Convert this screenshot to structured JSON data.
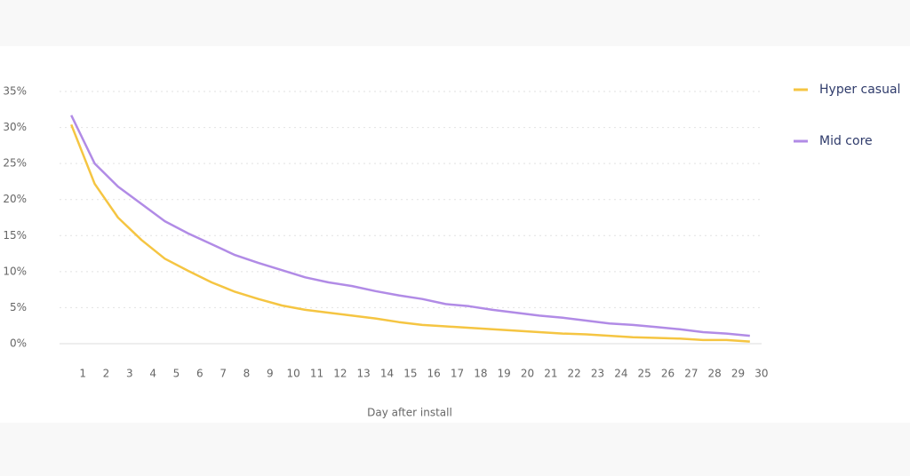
{
  "chart_data": {
    "type": "line",
    "x_label": "Day after install",
    "x": [
      1,
      2,
      3,
      4,
      5,
      6,
      7,
      8,
      9,
      10,
      11,
      12,
      13,
      14,
      15,
      16,
      17,
      18,
      19,
      20,
      21,
      22,
      23,
      24,
      25,
      26,
      27,
      28,
      29,
      30
    ],
    "series": [
      {
        "name": "Hyper casual",
        "color": "#f5c542",
        "values": [
          30.4,
          22.2,
          17.5,
          14.4,
          11.8,
          10.1,
          8.5,
          7.2,
          6.2,
          5.3,
          4.7,
          4.3,
          3.9,
          3.5,
          3.0,
          2.6,
          2.4,
          2.2,
          2.0,
          1.8,
          1.6,
          1.4,
          1.3,
          1.1,
          0.9,
          0.8,
          0.7,
          0.5,
          0.5,
          0.3
        ]
      },
      {
        "name": "Mid core",
        "color": "#b18be6",
        "values": [
          31.7,
          25.0,
          21.8,
          19.4,
          17.0,
          15.3,
          13.8,
          12.3,
          11.2,
          10.2,
          9.2,
          8.5,
          8.0,
          7.3,
          6.7,
          6.2,
          5.5,
          5.2,
          4.7,
          4.3,
          3.9,
          3.6,
          3.2,
          2.8,
          2.6,
          2.3,
          2.0,
          1.6,
          1.4,
          1.1
        ]
      }
    ],
    "xlim": [
      0.5,
      30.5
    ],
    "xticks": [
      1,
      2,
      3,
      4,
      5,
      6,
      7,
      8,
      9,
      10,
      11,
      12,
      13,
      14,
      15,
      16,
      17,
      18,
      19,
      20,
      21,
      22,
      23,
      24,
      25,
      26,
      27,
      28,
      29,
      30
    ],
    "ylim": [
      0,
      35
    ],
    "yticks": [
      {
        "value": 0,
        "label": "0%"
      },
      {
        "value": 5,
        "label": "5%"
      },
      {
        "value": 10,
        "label": "10%"
      },
      {
        "value": 15,
        "label": "15%"
      },
      {
        "value": 20,
        "label": "20%"
      },
      {
        "value": 25,
        "label": "25%"
      },
      {
        "value": 30,
        "label": "30%"
      },
      {
        "value": 35,
        "label": "35%"
      }
    ],
    "grid": true,
    "legend": "right"
  }
}
